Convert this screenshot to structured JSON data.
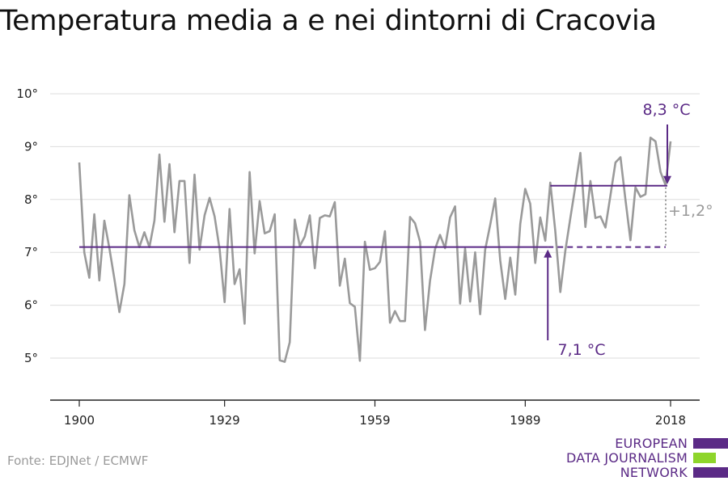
{
  "chart_data": {
    "type": "line",
    "title": "Temperatura media a e nei dintorni di Cracovia",
    "x_ticks": [
      "1900",
      "1929",
      "1959",
      "1989",
      "2018"
    ],
    "y_ticks": [
      "5°",
      "6°",
      "7°",
      "8°",
      "9°",
      "10°"
    ],
    "x_range": [
      1900,
      2018
    ],
    "ylim": [
      5,
      10
    ],
    "grid": true,
    "series": [
      {
        "color": "#9a9a9a",
        "x": [
          1900,
          1901,
          1902,
          1903,
          1904,
          1905,
          1906,
          1907,
          1908,
          1909,
          1910,
          1911,
          1912,
          1913,
          1914,
          1915,
          1916,
          1917,
          1918,
          1919,
          1920,
          1921,
          1922,
          1923,
          1924,
          1925,
          1926,
          1927,
          1928,
          1929,
          1930,
          1931,
          1932,
          1933,
          1934,
          1935,
          1936,
          1937,
          1938,
          1939,
          1940,
          1941,
          1942,
          1943,
          1944,
          1945,
          1946,
          1947,
          1948,
          1949,
          1950,
          1951,
          1952,
          1953,
          1954,
          1955,
          1956,
          1957,
          1958,
          1959,
          1960,
          1961,
          1962,
          1963,
          1964,
          1965,
          1966,
          1967,
          1968,
          1969,
          1970,
          1971,
          1972,
          1973,
          1974,
          1975,
          1976,
          1977,
          1978,
          1979,
          1980,
          1981,
          1982,
          1983,
          1984,
          1985,
          1986,
          1987,
          1988,
          1989,
          1990,
          1991,
          1992,
          1993,
          1994,
          1995,
          1996,
          1997,
          1998,
          1999,
          2000,
          2001,
          2002,
          2003,
          2004,
          2005,
          2006,
          2007,
          2008,
          2009,
          2010,
          2011,
          2012,
          2013,
          2014,
          2015,
          2016,
          2017,
          2018
        ],
        "y": [
          8.7,
          7.0,
          6.52,
          7.72,
          6.47,
          7.6,
          7.08,
          6.5,
          5.87,
          6.4,
          8.08,
          7.42,
          7.1,
          7.38,
          7.1,
          7.6,
          8.85,
          7.58,
          8.67,
          7.38,
          8.35,
          8.35,
          6.8,
          8.47,
          7.05,
          7.7,
          8.03,
          7.68,
          7.06,
          6.06,
          7.82,
          6.4,
          6.68,
          5.65,
          8.52,
          6.98,
          7.97,
          7.36,
          7.4,
          7.72,
          4.96,
          4.93,
          5.3,
          7.62,
          7.12,
          7.3,
          7.7,
          6.7,
          7.65,
          7.7,
          7.68,
          7.95,
          6.37,
          6.88,
          6.04,
          5.97,
          4.95,
          7.2,
          6.67,
          6.7,
          6.82,
          7.4,
          5.67,
          5.89,
          5.7,
          5.7,
          7.67,
          7.55,
          7.2,
          5.53,
          6.46,
          7.06,
          7.33,
          7.08,
          7.66,
          7.87,
          6.03,
          7.07,
          6.07,
          7.0,
          5.83,
          7.05,
          7.52,
          8.02,
          6.85,
          6.12,
          6.9,
          6.2,
          7.54,
          8.2,
          7.92,
          6.8,
          7.66,
          7.22,
          8.32,
          7.4,
          6.25,
          7.03,
          7.65,
          8.25,
          8.88,
          7.48,
          8.35,
          7.65,
          7.68,
          7.47,
          8.08,
          8.7,
          8.8,
          8.0,
          7.23,
          8.23,
          8.05,
          8.1,
          9.17,
          9.1,
          8.52,
          8.27,
          9.1
        ]
      },
      {
        "name": "7,1 °C",
        "color": "#5b2a86",
        "type": "reference",
        "x": [
          1900,
          2018
        ],
        "y": [
          7.1,
          7.1
        ]
      },
      {
        "name": "8,3 °C",
        "color": "#5b2a86",
        "type": "reference",
        "x": [
          1994,
          2018
        ],
        "y": [
          8.26,
          8.26
        ]
      }
    ],
    "annotations": {
      "recent_value": "8,3 °C",
      "baseline_value": "7,1 °C",
      "difference": "+1,2°"
    },
    "source": "Fonte: EDJNet / ECMWF"
  },
  "logo": {
    "lines": [
      "EUROPEAN",
      "DATA JOURNALISM",
      "NETWORK"
    ],
    "colors": {
      "purple": "#5b2a86",
      "green": "#8ed52b"
    }
  }
}
